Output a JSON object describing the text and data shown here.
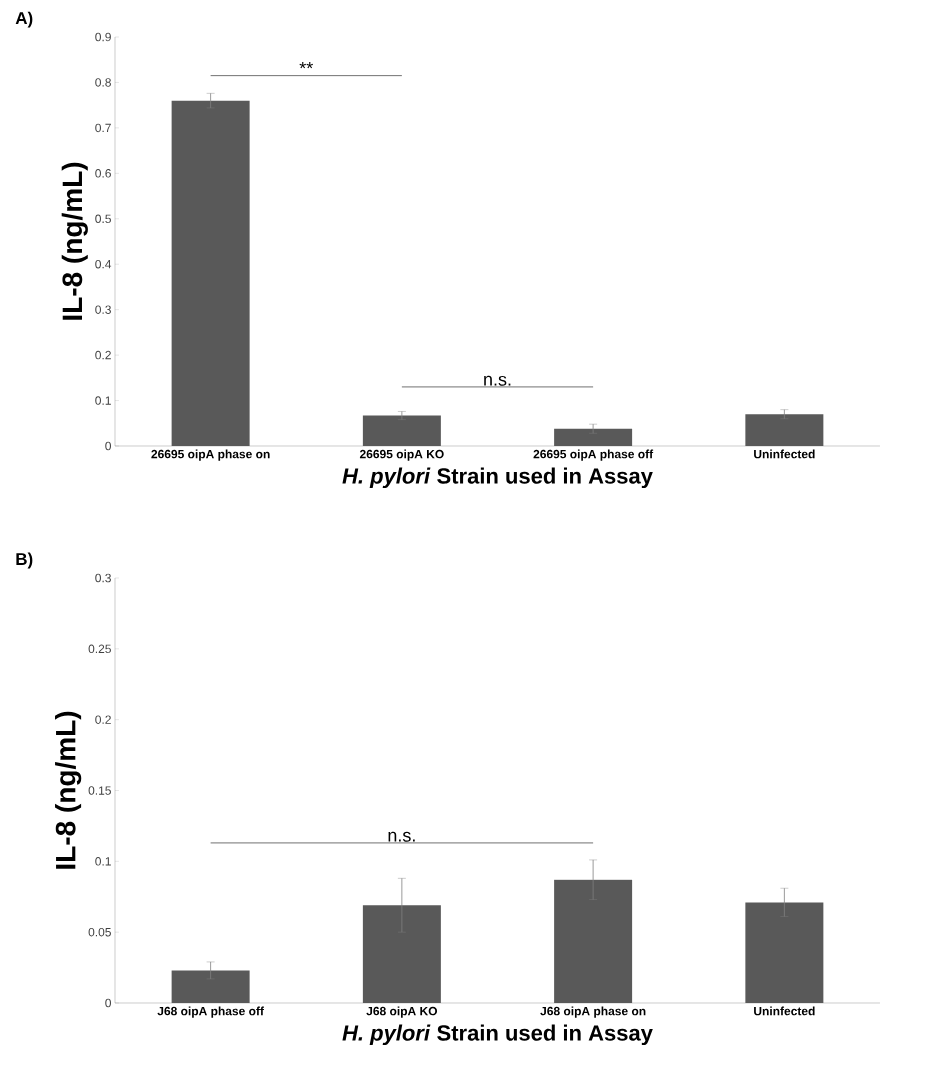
{
  "chart_data": [
    {
      "type": "bar",
      "title": "A)",
      "xlabel": "*H. pylori* Strain used in Assay",
      "ylabel": "IL-8 (ng/mL)",
      "categories": [
        "26695 oipA phase on",
        "26695 oipA KO",
        "26695 oipA phase off",
        "Uninfected"
      ],
      "values": [
        0.76,
        0.067,
        0.038,
        0.07
      ],
      "errors": [
        0.016,
        0.009,
        0.01,
        0.01
      ],
      "color": "#595959",
      "ylim": [
        0,
        0.9
      ],
      "yticks": [
        0,
        0.1,
        0.2,
        0.3,
        0.4,
        0.5,
        0.6,
        0.7,
        0.8,
        0.9
      ],
      "grid": false,
      "annotations": [
        "**",
        "n.s."
      ]
    },
    {
      "type": "bar",
      "title": "B)",
      "xlabel": "*H. pylori* Strain used in Assay",
      "ylabel": "IL-8 (ng/mL)",
      "categories": [
        "J68 oipA phase off",
        "J68 oipA KO",
        "J68 oipA phase on",
        "Uninfected"
      ],
      "values": [
        0.023,
        0.069,
        0.087,
        0.071
      ],
      "errors": [
        0.006,
        0.019,
        0.014,
        0.01
      ],
      "color": "#595959",
      "ylim": [
        0,
        0.3
      ],
      "yticks": [
        0,
        0.05,
        0.1,
        0.15,
        0.2,
        0.25,
        0.3
      ],
      "grid": false,
      "annotations": [
        "n.s."
      ]
    }
  ]
}
